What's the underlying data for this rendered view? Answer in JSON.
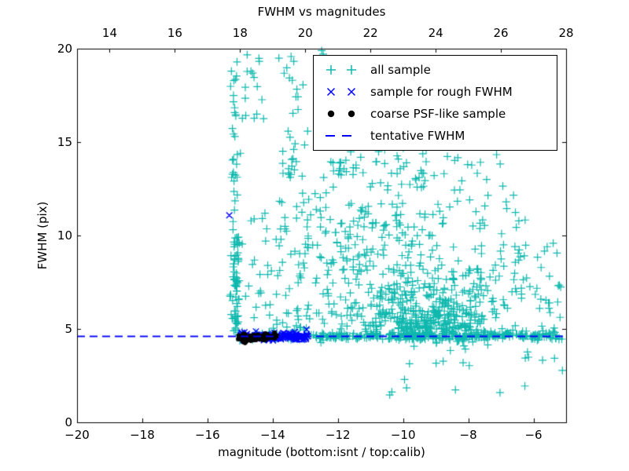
{
  "chart_data": {
    "type": "scatter",
    "title": "FWHM vs magnitudes",
    "x_axis": {
      "label": "magnitude (bottom:isnt / top:calib)",
      "range": [
        -20,
        -5
      ],
      "ticks": [
        -20,
        -18,
        -16,
        -14,
        -12,
        -10,
        -8,
        -6
      ],
      "tick_labels": [
        "−20",
        "−18",
        "−16",
        "−14",
        "−12",
        "−10",
        "−8",
        "−6"
      ]
    },
    "x_axis_top": {
      "range": [
        13,
        28
      ],
      "ticks": [
        14,
        16,
        18,
        20,
        22,
        24,
        26,
        28
      ],
      "tick_labels": [
        "14",
        "16",
        "18",
        "20",
        "22",
        "24",
        "26",
        "28"
      ]
    },
    "y_axis": {
      "label": "FWHM (pix)",
      "range": [
        0,
        20
      ],
      "ticks": [
        0,
        5,
        10,
        15,
        20
      ],
      "tick_labels": [
        "0",
        "5",
        "10",
        "15",
        "20"
      ]
    },
    "grid": false,
    "legend_position": "upper right inside",
    "tentative_fwhm": 4.6,
    "seed": 7,
    "series": [
      {
        "name": "all sample",
        "marker": "plus",
        "color": "#0fb8ae",
        "clusters": [
          {
            "n": 340,
            "x": [
              "u",
              -15.05,
              -5.15
            ],
            "y": [
              "n",
              4.62,
              0.1
            ]
          },
          {
            "n": 60,
            "x": [
              "u",
              -12.6,
              -7.0
            ],
            "y": [
              "n",
              4.7,
              0.25
            ]
          },
          {
            "n": 50,
            "x": [
              "n",
              -15.14,
              0.075
            ],
            "y": [
              "u",
              4.75,
              10.3
            ]
          },
          {
            "n": 18,
            "x": [
              "n",
              -15.12,
              0.06
            ],
            "y": [
              "u",
              7.2,
              9.6
            ]
          },
          {
            "n": 32,
            "x": [
              "n",
              -15.15,
              0.07
            ],
            "y": [
              "u",
              10.3,
              19.8
            ]
          },
          {
            "n": 18,
            "x": [
              "u",
              -14.9,
              -13.95
            ],
            "y": [
              "u",
              5.0,
              9.8
            ]
          },
          {
            "n": 5,
            "x": [
              "u",
              -14.9,
              -14.0
            ],
            "y": [
              "u",
              9.8,
              13.0
            ]
          },
          {
            "n": 13,
            "x": [
              "u",
              -15.0,
              -14.2
            ],
            "y": [
              "u",
              16.2,
              18.8
            ]
          },
          {
            "n": 3,
            "x": [
              "u",
              -14.8,
              -14.35
            ],
            "y": [
              "u",
              19.3,
              19.8
            ]
          },
          {
            "n": 10,
            "x": [
              "n",
              -13.4,
              0.15
            ],
            "y": [
              "u",
              13.2,
              14.5
            ]
          },
          {
            "n": 6,
            "x": [
              "u",
              -12.0,
              -11.2
            ],
            "y": [
              "u",
              13.4,
              14.3
            ]
          },
          {
            "n": 70,
            "x": [
              "u",
              -13.9,
              -12.3
            ],
            "y": [
              "u",
              4.9,
              11.0
            ]
          },
          {
            "n": 38,
            "x": [
              "u",
              -13.9,
              -12.3
            ],
            "y": [
              "u",
              11.0,
              19.6
            ]
          },
          {
            "n": 2,
            "x": [
              "u",
              -12.5,
              -12.2
            ],
            "y": [
              "u",
              19.6,
              19.9
            ]
          },
          {
            "n": 100,
            "x": [
              "u",
              -12.3,
              -10.4
            ],
            "y": [
              "u",
              4.9,
              11.0
            ]
          },
          {
            "n": 55,
            "x": [
              "u",
              -12.35,
              -10.4
            ],
            "y": [
              "u",
              11.0,
              19.3
            ]
          },
          {
            "n": 200,
            "x": [
              "n",
              -9.3,
              0.95
            ],
            "y": [
              "u",
              4.85,
              8.2
            ]
          },
          {
            "n": 120,
            "x": [
              "n",
              -9.6,
              1.05
            ],
            "y": [
              "u",
              8.2,
              14.5
            ]
          },
          {
            "n": 150,
            "x": [
              "n",
              -9.0,
              0.85
            ],
            "y": [
              "n",
              5.5,
              0.55
            ]
          },
          {
            "n": 65,
            "x": [
              "u",
              -8.0,
              -6.2
            ],
            "y": [
              "u",
              4.8,
              11.5
            ]
          },
          {
            "n": 38,
            "x": [
              "u",
              -6.6,
              -5.1
            ],
            "y": [
              "u",
              2.6,
              10.2
            ]
          },
          {
            "n": 13,
            "x": [
              "u",
              -10.6,
              -5.3
            ],
            "y": [
              "u",
              1.3,
              4.1
            ]
          },
          {
            "n": 22,
            "x": [
              "u",
              -10.5,
              -7.9
            ],
            "y": [
              "u",
              14.5,
              19.2
            ]
          },
          {
            "n": 6,
            "x": [
              "u",
              -7.9,
              -6.4
            ],
            "y": [
              "u",
              11.5,
              14.8
            ]
          }
        ]
      },
      {
        "name": "sample for rough FWHM",
        "marker": "x",
        "color": "#0000ff",
        "points": [
          [
            -15.33,
            11.08
          ]
        ],
        "clusters": [
          {
            "n": 115,
            "x": [
              "u",
              -15.0,
              -12.92
            ],
            "y": [
              "n",
              4.6,
              0.1
            ]
          },
          {
            "n": 12,
            "x": [
              "u",
              -13.7,
              -12.95
            ],
            "y": [
              "n",
              4.62,
              0.17
            ]
          }
        ]
      },
      {
        "name": "coarse PSF-like sample",
        "marker": "dot",
        "color": "#000000",
        "clusters": [
          {
            "n": 60,
            "x": [
              "u",
              -15.06,
              -14.5
            ],
            "y": [
              "n",
              4.52,
              0.085
            ]
          },
          {
            "n": 48,
            "x": [
              "u",
              -14.5,
              -13.87
            ],
            "y": [
              "n",
              4.57,
              0.075
            ]
          }
        ]
      },
      {
        "name": "tentative FWHM",
        "marker": "dash",
        "color": "#0000ff",
        "line_y": 4.6,
        "dash": [
          10,
          6
        ]
      }
    ]
  },
  "legend": {
    "items": [
      {
        "label": "all sample",
        "marker": "plus",
        "color": "#0fb8ae"
      },
      {
        "label": "sample for rough FWHM",
        "marker": "x",
        "color": "#0000ff"
      },
      {
        "label": "coarse PSF-like sample",
        "marker": "dot",
        "color": "#000000"
      },
      {
        "label": "tentative FWHM",
        "marker": "dash",
        "color": "#0000ff"
      }
    ]
  }
}
